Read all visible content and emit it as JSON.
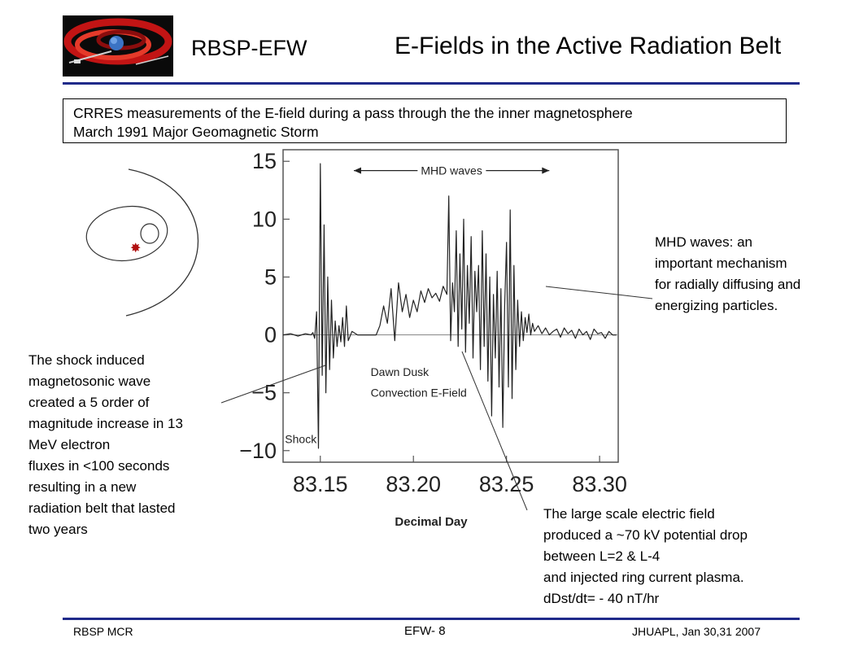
{
  "header": {
    "left_label": "RBSP-EFW",
    "title": "E-Fields in the Active Radiation Belt"
  },
  "caption": {
    "line1": "CRRES measurements of the E-field during a pass through the  the inner magnetosphere",
    "line2": "March 1991 Major Geomagnetic Storm"
  },
  "notes": {
    "shock": [
      "The shock induced",
      "magnetosonic wave",
      "created a 5 order of",
      "magnitude increase in 13",
      "MeV electron",
      "fluxes in <100 seconds",
      "resulting in a new",
      "radiation belt  that lasted",
      "two years"
    ],
    "mhd": [
      "MHD waves:  an",
      "important mechanism",
      "for radially diffusing and",
      "energizing  particles."
    ],
    "efield": [
      "The large scale electric field",
      "produced a ~70 kV potential drop",
      "between L=2 & L-4",
      "and injected ring current plasma.",
      "dDst/dt= - 40 nT/hr"
    ]
  },
  "footer": {
    "left": "RBSP MCR",
    "center": "EFW- 8",
    "right": "JHUAPL, Jan 30,31 2007"
  },
  "colors": {
    "rule": "#1f2a8a",
    "trace": "#222222",
    "marker": "#b01010"
  },
  "chart_data": {
    "type": "line",
    "xlabel": "Decimal Day",
    "ylabel": "",
    "xlim": [
      83.13,
      83.31
    ],
    "ylim": [
      -11,
      16
    ],
    "x_ticks": [
      {
        "value": 83.15,
        "label": "83.15"
      },
      {
        "value": 83.2,
        "label": "83.20"
      },
      {
        "value": 83.25,
        "label": "83.25"
      },
      {
        "value": 83.3,
        "label": "83.30"
      }
    ],
    "y_ticks": [
      {
        "value": 15,
        "label": "15"
      },
      {
        "value": 10,
        "label": "10"
      },
      {
        "value": 5,
        "label": "5"
      },
      {
        "value": 0,
        "label": "0"
      },
      {
        "value": -5,
        "label": "−5"
      },
      {
        "value": -10,
        "label": "−10"
      }
    ],
    "annotations": [
      {
        "text": "MHD waves",
        "x": 83.204,
        "y": 14.2
      },
      {
        "text": "Dawn Dusk",
        "x": 83.177,
        "y": -3.2
      },
      {
        "text": "Convection E-Field",
        "x": 83.177,
        "y": -5.0
      },
      {
        "text": "Shock",
        "x": 83.131,
        "y": -9.0
      }
    ],
    "mhd_arrow": {
      "x_start": 83.168,
      "x_end": 83.273,
      "y": 14.2
    },
    "series": [
      {
        "x": [
          83.13,
          83.134,
          83.138,
          83.142,
          83.145,
          83.146,
          83.147,
          83.148,
          83.149,
          83.15,
          83.151,
          83.152,
          83.153,
          83.154,
          83.155,
          83.156,
          83.157,
          83.158,
          83.159,
          83.16,
          83.161,
          83.162,
          83.163,
          83.164,
          83.165,
          83.167,
          83.17,
          83.175,
          83.18,
          83.182,
          83.184,
          83.186,
          83.188,
          83.19,
          83.192,
          83.194,
          83.196,
          83.198,
          83.2,
          83.202,
          83.204,
          83.206,
          83.208,
          83.21,
          83.212,
          83.214,
          83.216,
          83.218,
          83.219,
          83.22,
          83.221,
          83.222,
          83.223,
          83.224,
          83.225,
          83.226,
          83.227,
          83.228,
          83.229,
          83.23,
          83.231,
          83.232,
          83.233,
          83.234,
          83.235,
          83.236,
          83.237,
          83.238,
          83.239,
          83.24,
          83.241,
          83.242,
          83.243,
          83.244,
          83.245,
          83.246,
          83.247,
          83.248,
          83.249,
          83.25,
          83.251,
          83.252,
          83.253,
          83.254,
          83.255,
          83.256,
          83.257,
          83.258,
          83.259,
          83.26,
          83.261,
          83.262,
          83.263,
          83.264,
          83.265,
          83.267,
          83.269,
          83.271,
          83.273,
          83.275,
          83.277,
          83.279,
          83.281,
          83.283,
          83.285,
          83.287,
          83.289,
          83.291,
          83.293,
          83.295,
          83.297,
          83.299,
          83.301,
          83.303,
          83.305,
          83.307,
          83.309
        ],
        "y": [
          0.0,
          0.1,
          -0.1,
          0.1,
          0.0,
          0.2,
          -0.3,
          2.0,
          -9.8,
          14.8,
          -3.5,
          9.5,
          -5.0,
          5.0,
          -3.0,
          3.0,
          -2.0,
          1.2,
          -1.0,
          0.8,
          -0.6,
          1.5,
          -1.0,
          2.5,
          -0.5,
          0.3,
          0.0,
          0.0,
          0.0,
          0.8,
          2.5,
          1.0,
          4.0,
          -0.5,
          4.5,
          2.0,
          3.5,
          1.5,
          3.0,
          2.0,
          3.8,
          2.8,
          4.0,
          3.2,
          3.6,
          2.9,
          4.2,
          3.5,
          12.0,
          -0.5,
          4.5,
          2.0,
          9.0,
          -1.0,
          7.0,
          0.5,
          10.0,
          -1.5,
          6.0,
          1.0,
          8.5,
          -2.0,
          5.5,
          2.0,
          6.0,
          -3.0,
          9.0,
          -1.0,
          7.0,
          -4.0,
          5.0,
          -7.0,
          3.5,
          -2.0,
          5.5,
          -4.5,
          4.0,
          -8.0,
          2.5,
          8.0,
          -4.5,
          10.8,
          -5.5,
          6.0,
          -3.0,
          3.0,
          -1.0,
          2.0,
          -0.5,
          1.5,
          0.2,
          1.8,
          0.0,
          1.0,
          0.3,
          0.8,
          0.1,
          0.6,
          0.0,
          0.3,
          0.5,
          -0.2,
          0.6,
          0.1,
          0.4,
          -0.3,
          0.5,
          0.0,
          0.3,
          -0.4,
          0.5,
          0.1,
          0.2,
          -0.3,
          0.3,
          0.0,
          0.0
        ]
      }
    ]
  }
}
